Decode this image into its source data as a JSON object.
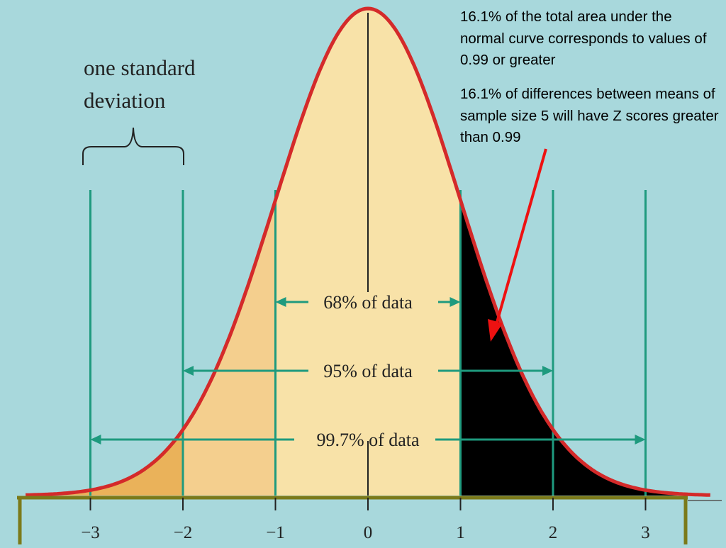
{
  "notes": {
    "area_note": "16.1% of the total area under the normal curve corresponds to values of 0.99 or greater",
    "zscore_note": "16.1% of differences between means of sample size 5 will have Z scores greater than 0.99"
  },
  "brace_label": {
    "line1": "one standard",
    "line2": "deviation"
  },
  "ranges": [
    {
      "label": "68% of data",
      "from": -1,
      "to": 1
    },
    {
      "label": "95% of data",
      "from": -2,
      "to": 2
    },
    {
      "label": "99.7% of data",
      "from": -3,
      "to": 3
    }
  ],
  "axis": {
    "ticks": [
      -3,
      -2,
      -1,
      0,
      1,
      2,
      3
    ],
    "tick_labels": [
      "−3",
      "−2",
      "−1",
      "0",
      "1",
      "2",
      "3"
    ]
  },
  "shaded_region": {
    "from": 0.99,
    "to": 3.5,
    "fraction": 0.161
  },
  "colors": {
    "background": "#a8d8dc",
    "curve": "#d42a2a",
    "fill_center": "#f8e2a8",
    "fill_mid": "#f4cf8e",
    "fill_outer": "#eab25a",
    "tail": "#000000",
    "guide_lines": "#1e9a7e",
    "arrow": "#ee1111",
    "axis_box": "#7b7a1a"
  }
}
